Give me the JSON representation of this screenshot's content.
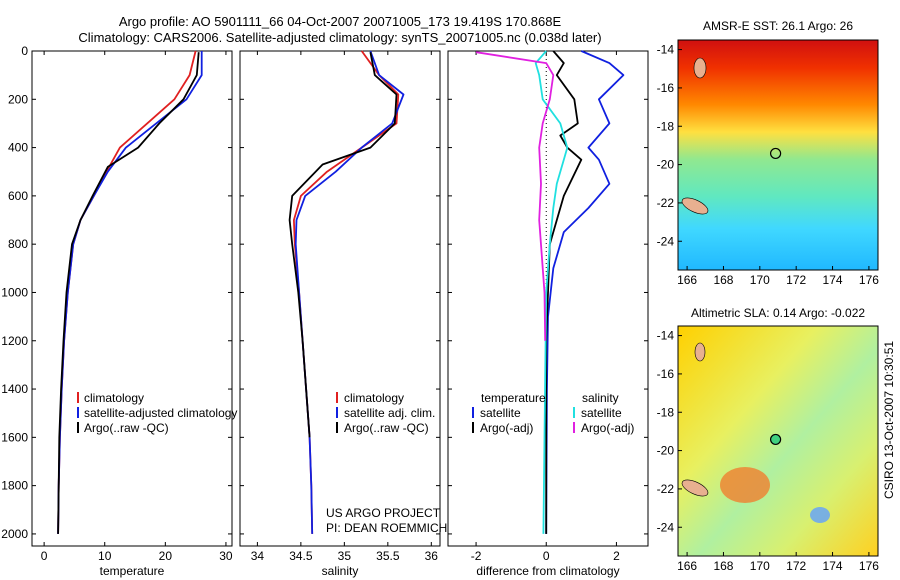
{
  "figure": {
    "title_line1": "Argo profile: AO 5901111_66 04-Oct-2007 20071005_173 19.419S 170.868E",
    "title_line2": "Climatology: CARS2006. Satellite-adjusted climatology: synTS_20071005.nc (0.038d later)",
    "side_stamp": "CSIRO 13-Oct-2007 10:30:51",
    "project_line1": "US ARGO PROJECT",
    "project_line2": "PI: DEAN ROEMMICH"
  },
  "colors": {
    "climatology": "#e02020",
    "satellite": "#1020e0",
    "argo": "#000000",
    "sat_diff": "#20e0e0",
    "argo_diff": "#e020e0"
  },
  "chart_data": [
    {
      "type": "line",
      "id": "temperature",
      "xlabel": "temperature",
      "ylabel": "",
      "xlim": [
        -2,
        31
      ],
      "ylim": [
        2050,
        0
      ],
      "xticks": [
        0,
        10,
        20,
        30
      ],
      "yticks": [
        0,
        200,
        400,
        600,
        800,
        1000,
        1200,
        1400,
        1600,
        1800,
        2000
      ],
      "legend": [
        "climatology",
        "satellite-adjusted climatology",
        "Argo(..raw -QC)"
      ],
      "series": [
        {
          "name": "climatology",
          "color": "#e02020",
          "x": [
            25.0,
            24.0,
            21.5,
            17.0,
            12.5,
            10.3,
            8.2,
            6.0,
            4.8,
            3.9,
            3.3,
            2.9,
            2.6,
            2.4,
            2.3
          ],
          "y": [
            0,
            100,
            200,
            300,
            400,
            500,
            600,
            700,
            800,
            1000,
            1200,
            1400,
            1600,
            1800,
            2000
          ]
        },
        {
          "name": "satellite-adjusted climatology",
          "color": "#1020e0",
          "x": [
            26.0,
            26.0,
            23.5,
            18.5,
            13.5,
            10.5,
            8.2,
            6.0,
            4.8,
            3.9,
            3.3,
            2.9,
            2.6,
            2.4,
            2.3
          ],
          "y": [
            0,
            100,
            200,
            300,
            400,
            500,
            600,
            700,
            800,
            1000,
            1200,
            1400,
            1600,
            1800,
            2000
          ]
        },
        {
          "name": "Argo(..raw -QC)",
          "color": "#000000",
          "x": [
            25.5,
            25.2,
            23.0,
            19.0,
            15.5,
            10.5,
            8.0,
            6.0,
            4.6,
            3.7,
            3.2,
            2.8,
            2.5,
            2.4,
            2.3
          ],
          "y": [
            5,
            100,
            200,
            300,
            400,
            480,
            600,
            700,
            800,
            1000,
            1200,
            1400,
            1600,
            1800,
            2000
          ]
        }
      ]
    },
    {
      "type": "line",
      "id": "salinity",
      "xlabel": "salinity",
      "ylabel": "",
      "xlim": [
        33.8,
        36.1
      ],
      "ylim": [
        2050,
        0
      ],
      "xticks": [
        34,
        34.5,
        35,
        35.5,
        36
      ],
      "legend": [
        "climatology",
        "satellite adj. clim.",
        "Argo(..raw -QC)"
      ],
      "series": [
        {
          "name": "climatology",
          "color": "#e02020",
          "x": [
            35.2,
            35.4,
            35.62,
            35.6,
            35.2,
            34.8,
            34.5,
            34.42,
            34.43,
            34.48,
            34.52,
            34.56,
            34.6,
            34.62,
            34.63
          ],
          "y": [
            0,
            100,
            180,
            300,
            400,
            500,
            600,
            700,
            800,
            1000,
            1200,
            1400,
            1600,
            1800,
            2000
          ]
        },
        {
          "name": "satellite adj. clim.",
          "color": "#1020e0",
          "x": [
            35.3,
            35.4,
            35.68,
            35.55,
            35.2,
            34.9,
            34.55,
            34.45,
            34.44,
            34.48,
            34.52,
            34.56,
            34.6,
            34.62,
            34.63
          ],
          "y": [
            0,
            100,
            180,
            300,
            400,
            500,
            600,
            700,
            800,
            1000,
            1200,
            1400,
            1600,
            1800,
            2000
          ]
        },
        {
          "name": "Argo(..raw -QC)",
          "color": "#000000",
          "x": [
            35.3,
            35.35,
            35.6,
            35.58,
            35.3,
            34.75,
            34.4,
            34.37,
            34.4,
            34.47,
            34.52,
            34.56,
            34.6
          ],
          "y": [
            5,
            100,
            180,
            300,
            400,
            470,
            600,
            700,
            800,
            1000,
            1200,
            1400,
            1600
          ]
        }
      ]
    },
    {
      "type": "line",
      "id": "difference",
      "xlabel": "difference from climatology",
      "ylabel": "",
      "xlim": [
        -2.8,
        2.9
      ],
      "ylim": [
        2050,
        0
      ],
      "xticks": [
        -2,
        0,
        2
      ],
      "legend_left_title": "temperature",
      "legend_right_title": "salinity",
      "legend_left": [
        "satellite",
        "Argo(-adj)"
      ],
      "legend_right": [
        "satellite",
        "Argo(-adj)"
      ],
      "series": [
        {
          "name": "temperature satellite",
          "color": "#1020e0",
          "x": [
            1.0,
            1.8,
            2.2,
            1.5,
            1.8,
            1.2,
            1.5,
            1.8,
            1.2,
            0.5,
            0.2,
            0.05,
            0.02,
            0.0
          ],
          "y": [
            0,
            50,
            100,
            200,
            300,
            400,
            450,
            550,
            650,
            750,
            900,
            1100,
            1400,
            2000
          ]
        },
        {
          "name": "temperature Argo(-adj)",
          "color": "#000000",
          "x": [
            0.2,
            0.5,
            0.3,
            0.8,
            0.9,
            0.4,
            0.6,
            1.0,
            0.5,
            0.1,
            0.0,
            0.0
          ],
          "y": [
            0,
            50,
            100,
            200,
            300,
            350,
            400,
            450,
            600,
            800,
            1200,
            2000
          ]
        },
        {
          "name": "salinity satellite",
          "color": "#20e0e0",
          "x": [
            0.0,
            -0.3,
            -0.2,
            -0.1,
            0.4,
            0.6,
            0.5,
            0.3,
            0.2,
            0.1,
            0.0,
            -0.05,
            -0.08
          ],
          "y": [
            0,
            50,
            100,
            200,
            300,
            400,
            450,
            550,
            650,
            800,
            1000,
            1600,
            2000
          ]
        },
        {
          "name": "salinity Argo(-adj)",
          "color": "#e020e0",
          "x": [
            -2.0,
            0.0,
            0.2,
            0.1,
            -0.1,
            -0.2,
            -0.15,
            -0.2,
            -0.05,
            -0.03
          ],
          "y": [
            5,
            50,
            100,
            200,
            300,
            400,
            550,
            700,
            1000,
            1200
          ]
        }
      ]
    },
    {
      "type": "heatmap",
      "id": "sst-map",
      "title": "AMSR-E SST: 26.1 Argo: 26",
      "xticks": [
        166,
        168,
        170,
        172,
        174,
        176
      ],
      "yticks": [
        -14,
        -16,
        -18,
        -20,
        -22,
        -24
      ],
      "xlim": [
        165.5,
        176.5
      ],
      "ylim": [
        -25.5,
        -13.5
      ],
      "marker": {
        "lon": 170.868,
        "lat": -19.419
      }
    },
    {
      "type": "heatmap",
      "id": "sla-map",
      "title": "Altimetric SLA: 0.14 Argo: -0.022",
      "xticks": [
        166,
        168,
        170,
        172,
        174,
        176
      ],
      "yticks": [
        -14,
        -16,
        -18,
        -20,
        -22,
        -24
      ],
      "xlim": [
        165.5,
        176.5
      ],
      "ylim": [
        -25.5,
        -13.5
      ],
      "marker": {
        "lon": 170.868,
        "lat": -19.419
      }
    }
  ]
}
